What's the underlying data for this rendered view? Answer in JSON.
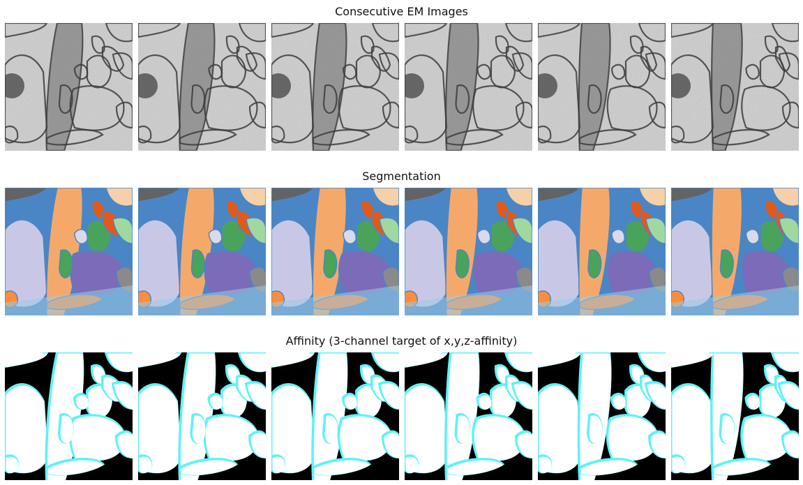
{
  "figure": {
    "rows": [
      {
        "id": "em",
        "title": "Consecutive EM Images",
        "panel_count": 6
      },
      {
        "id": "seg",
        "title": "Segmentation",
        "panel_count": 6
      },
      {
        "id": "aff",
        "title": "Affinity (3-channel target of x,y,z-affinity)",
        "panel_count": 6
      }
    ]
  },
  "colors": {
    "seg_background": "#4a86c5",
    "seg_palette": [
      "#f4a96b",
      "#4aa35a",
      "#7b6bb8",
      "#c8c8e6",
      "#e05a1c",
      "#a0d8a0",
      "#6baed6",
      "#f6d0a8",
      "#8a8a8a",
      "#636363",
      "#fd8d3c",
      "#9ecae1",
      "#dadaeb"
    ],
    "aff_boundary": "#000000",
    "aff_partial": "#5ef2f7",
    "aff_full": "#ffffff"
  }
}
